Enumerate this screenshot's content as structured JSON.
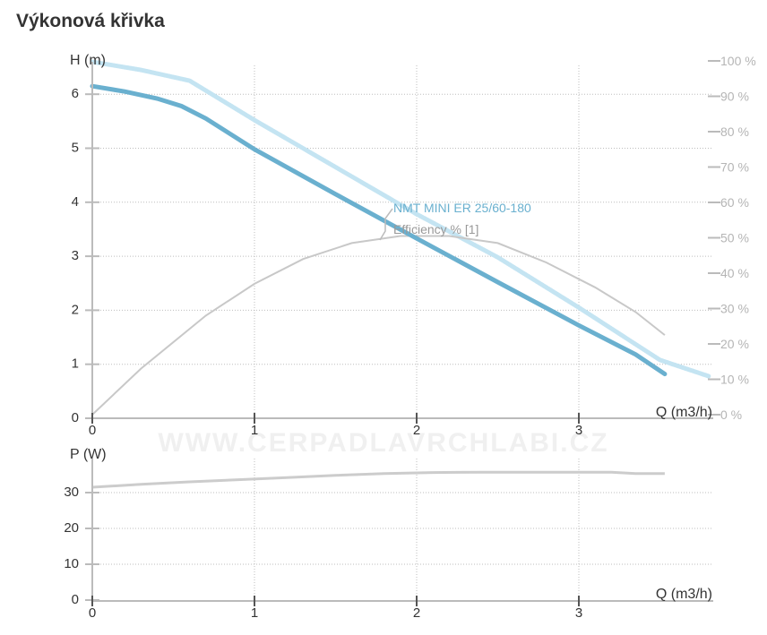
{
  "title": "Výkonová křivka",
  "watermark": "WWW.CERPADLAVRCHLABI.CZ",
  "colors": {
    "pump_curve": "#6ab0cf",
    "pump_curve_light": "#c4e4f2",
    "efficiency": "#c8c8c8",
    "power": "#cccccc",
    "axis": "#bbbbbb",
    "text": "#333333",
    "right_axis_text": "#b5b5b5"
  },
  "chart_data": [
    {
      "type": "line",
      "xlabel": "Q (m3/h)",
      "ylabel": "H (m)",
      "y2label": "",
      "xlim": [
        0,
        3.8
      ],
      "ylim": [
        0,
        6.5
      ],
      "y2lim": [
        0,
        100
      ],
      "xticks": [
        "0",
        "1",
        "2",
        "3"
      ],
      "yticks": [
        "0",
        "1",
        "2",
        "3",
        "4",
        "5",
        "6"
      ],
      "y2ticks": [
        "0 %",
        "10 %",
        "20 %",
        "30 %",
        "40 %",
        "50 %",
        "60 %",
        "70 %",
        "80 %",
        "90 %",
        "100 %"
      ],
      "grid": true,
      "annotations": [
        "NMT MINI ER 25/60-180",
        "Efficiency % [1]"
      ],
      "series": [
        {
          "name": "NMT MINI ER 25/60-180",
          "axis": "left",
          "x": [
            0,
            0.2,
            0.4,
            0.55,
            0.7,
            1.0,
            1.5,
            2.0,
            2.5,
            3.0,
            3.35,
            3.53
          ],
          "y": [
            6.15,
            6.05,
            5.92,
            5.78,
            5.55,
            4.98,
            4.15,
            3.33,
            2.52,
            1.72,
            1.18,
            0.82
          ]
        },
        {
          "name": "",
          "axis": "left",
          "x": [
            0,
            0.3,
            0.6,
            1.0,
            1.5,
            2.0,
            2.5,
            3.0,
            3.5,
            3.8
          ],
          "y": [
            6.6,
            6.45,
            6.25,
            5.52,
            4.65,
            3.78,
            2.98,
            2.05,
            1.08,
            0.78
          ]
        },
        {
          "name": "Efficiency % [1]",
          "axis": "right",
          "x": [
            0,
            0.3,
            0.7,
            1.0,
            1.3,
            1.6,
            1.9,
            2.2,
            2.5,
            2.8,
            3.1,
            3.35,
            3.53
          ],
          "y": [
            0,
            13,
            28,
            37,
            44,
            48.5,
            50.5,
            50.5,
            48.5,
            43,
            36,
            29,
            22.5
          ]
        }
      ]
    },
    {
      "type": "line",
      "xlabel": "Q (m3/h)",
      "ylabel": "P (W)",
      "xlim": [
        0,
        3.8
      ],
      "ylim": [
        0,
        38
      ],
      "xticks": [
        "0",
        "1",
        "2",
        "3"
      ],
      "yticks": [
        "0",
        "10",
        "20",
        "30"
      ],
      "grid": true,
      "series": [
        {
          "name": "",
          "x": [
            0,
            0.3,
            0.6,
            0.9,
            1.2,
            1.5,
            1.8,
            2.1,
            2.4,
            2.7,
            3.0,
            3.2,
            3.35,
            3.53
          ],
          "y": [
            31.5,
            32.3,
            33.0,
            33.6,
            34.2,
            34.8,
            35.3,
            35.6,
            35.7,
            35.7,
            35.7,
            35.7,
            35.3,
            35.3
          ]
        }
      ]
    }
  ]
}
